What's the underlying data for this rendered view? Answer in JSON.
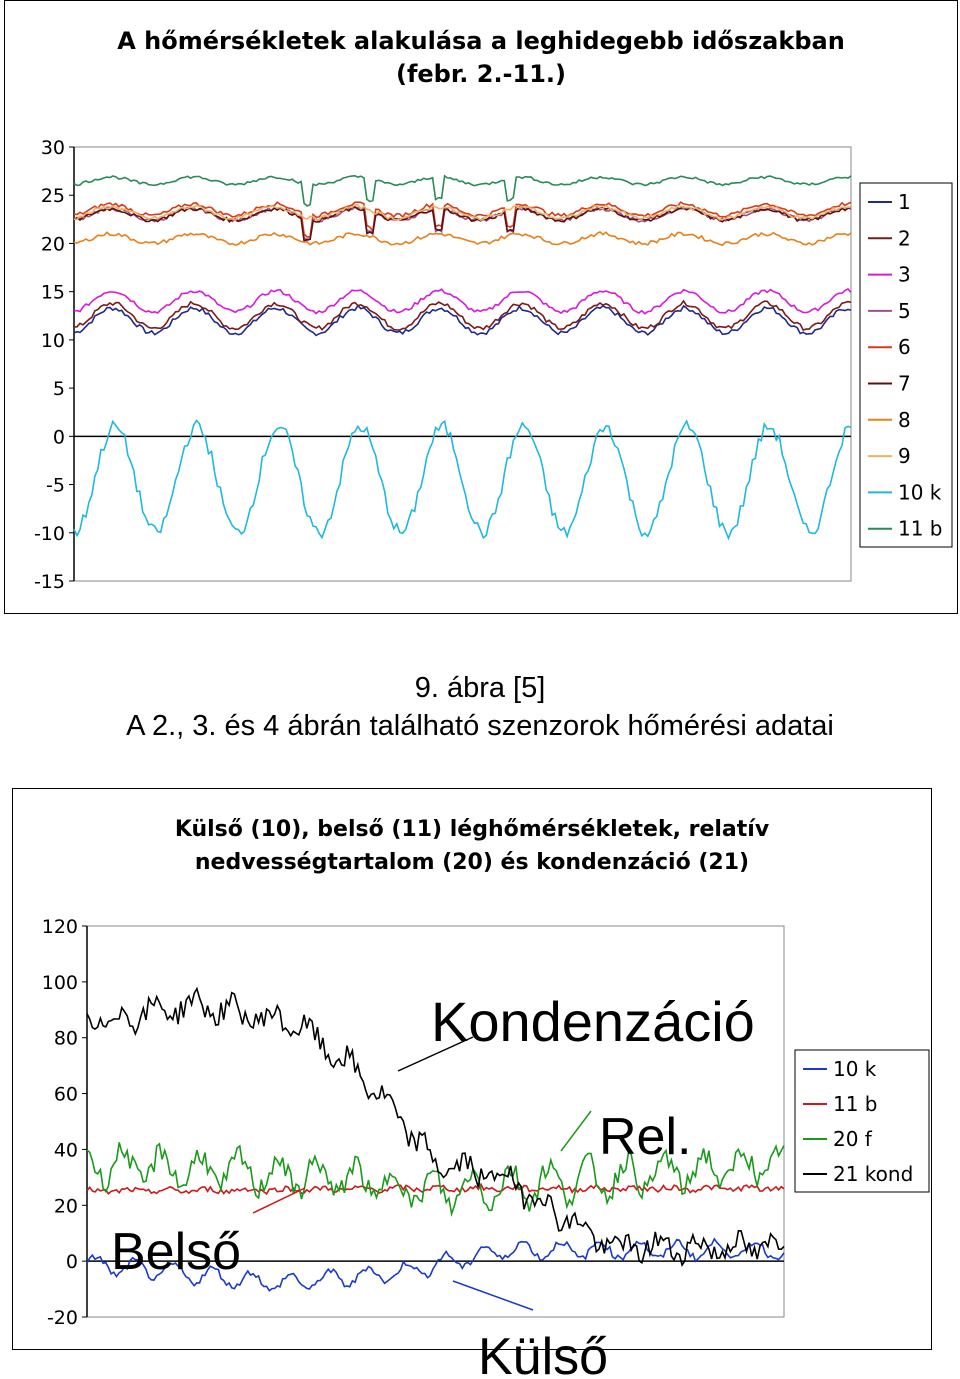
{
  "figure1": {
    "title_line1": "A hőmérsékletek alakulása a leghidegebb időszakban",
    "title_line2": "(febr. 2.-11.)"
  },
  "caption": {
    "line1": "9.  ábra [5]",
    "line2": "A 2., 3. és 4 ábrán található szenzorok hőmérési adatai"
  },
  "figure2": {
    "title_line1": "Külső (10), belső (11) léghőmérsékletek, relatív",
    "title_line2": "nedvességtartalom (20) és kondenzáció (21)",
    "annotations": [
      "Kondenzáció",
      "Rel.",
      "Belső",
      "Külső"
    ]
  },
  "chart_data": [
    {
      "type": "line",
      "title": "A hőmérsékletek alakulása a leghidegebb időszakban (febr. 2.-11.)",
      "xlabel": "",
      "ylabel": "",
      "ylim": [
        -15,
        30
      ],
      "yticks": [
        30,
        25,
        20,
        15,
        10,
        5,
        0,
        -5,
        -10,
        -15
      ],
      "legend_position": "right",
      "grid": false,
      "series": [
        {
          "name": "1",
          "color": "#1f2a8a",
          "baseline": 12,
          "amplitude": 1.3,
          "phase": 0.2,
          "noise": 0.25
        },
        {
          "name": "2",
          "color": "#7a1a1a",
          "baseline": 12.5,
          "amplitude": 1.3,
          "phase": 0.2,
          "noise": 0.25
        },
        {
          "name": "3",
          "color": "#d81ad8",
          "baseline": 14,
          "amplitude": 1.1,
          "phase": 0.2,
          "noise": 0.2
        },
        {
          "name": "5",
          "color": "#a05090",
          "baseline": 23,
          "amplitude": 0.6,
          "phase": 0.3,
          "noise": 0.2,
          "dips": true
        },
        {
          "name": "6",
          "color": "#d83a1a",
          "baseline": 23.5,
          "amplitude": 0.6,
          "phase": 0.3,
          "noise": 0.2,
          "dips": true
        },
        {
          "name": "7",
          "color": "#5a1010",
          "baseline": 23,
          "amplitude": 0.6,
          "phase": 0.3,
          "noise": 0.2,
          "dips": true
        },
        {
          "name": "8",
          "color": "#e8801a",
          "baseline": 20.5,
          "amplitude": 0.5,
          "phase": 0.3,
          "noise": 0.2
        },
        {
          "name": "9",
          "color": "#f0b060",
          "baseline": 23.2,
          "amplitude": 0.6,
          "phase": 0.3,
          "noise": 0.2
        },
        {
          "name": "10 k",
          "color": "#20b8e0",
          "baseline": -4.5,
          "amplitude": 5.5,
          "phase": 0.0,
          "noise": 0.7
        },
        {
          "name": "11 b",
          "color": "#2a8a5a",
          "baseline": 26.5,
          "amplitude": 0.4,
          "phase": 0.3,
          "noise": 0.15,
          "dips": true
        }
      ]
    },
    {
      "type": "line",
      "title": "Külső (10), belső (11) léghőmérsékletek, relatív nedvességtartalom (20) és kondenzáció (21)",
      "xlabel": "",
      "ylabel": "",
      "ylim": [
        -20,
        120
      ],
      "yticks": [
        120,
        100,
        80,
        60,
        40,
        20,
        0,
        -20
      ],
      "legend_position": "right",
      "grid": false,
      "series": [
        {
          "name": "10 k",
          "color": "#1a3acc",
          "segments": [
            [
              0,
              -1
            ],
            [
              0.28,
              -8
            ],
            [
              0.45,
              -4
            ],
            [
              0.6,
              4
            ],
            [
              1,
              4
            ]
          ],
          "amplitude": 3,
          "noise": 1.2
        },
        {
          "name": "11 b",
          "color": "#cc1a1a",
          "segments": [
            [
              0,
              25
            ],
            [
              0.5,
              26
            ],
            [
              1,
              26
            ]
          ],
          "amplitude": 0.5,
          "noise": 1
        },
        {
          "name": "20 f",
          "color": "#1a9a1a",
          "segments": [
            [
              0,
              35
            ],
            [
              0.35,
              30
            ],
            [
              0.5,
              25
            ],
            [
              1,
              35
            ]
          ],
          "amplitude": 6,
          "noise": 4
        },
        {
          "name": "21 kond",
          "color": "#000000",
          "segments": [
            [
              0,
              85
            ],
            [
              0.15,
              92
            ],
            [
              0.3,
              85
            ],
            [
              0.4,
              65
            ],
            [
              0.5,
              35
            ],
            [
              0.6,
              30
            ],
            [
              0.75,
              5
            ],
            [
              1,
              5
            ]
          ],
          "amplitude": 3,
          "noise": 4
        }
      ]
    }
  ]
}
